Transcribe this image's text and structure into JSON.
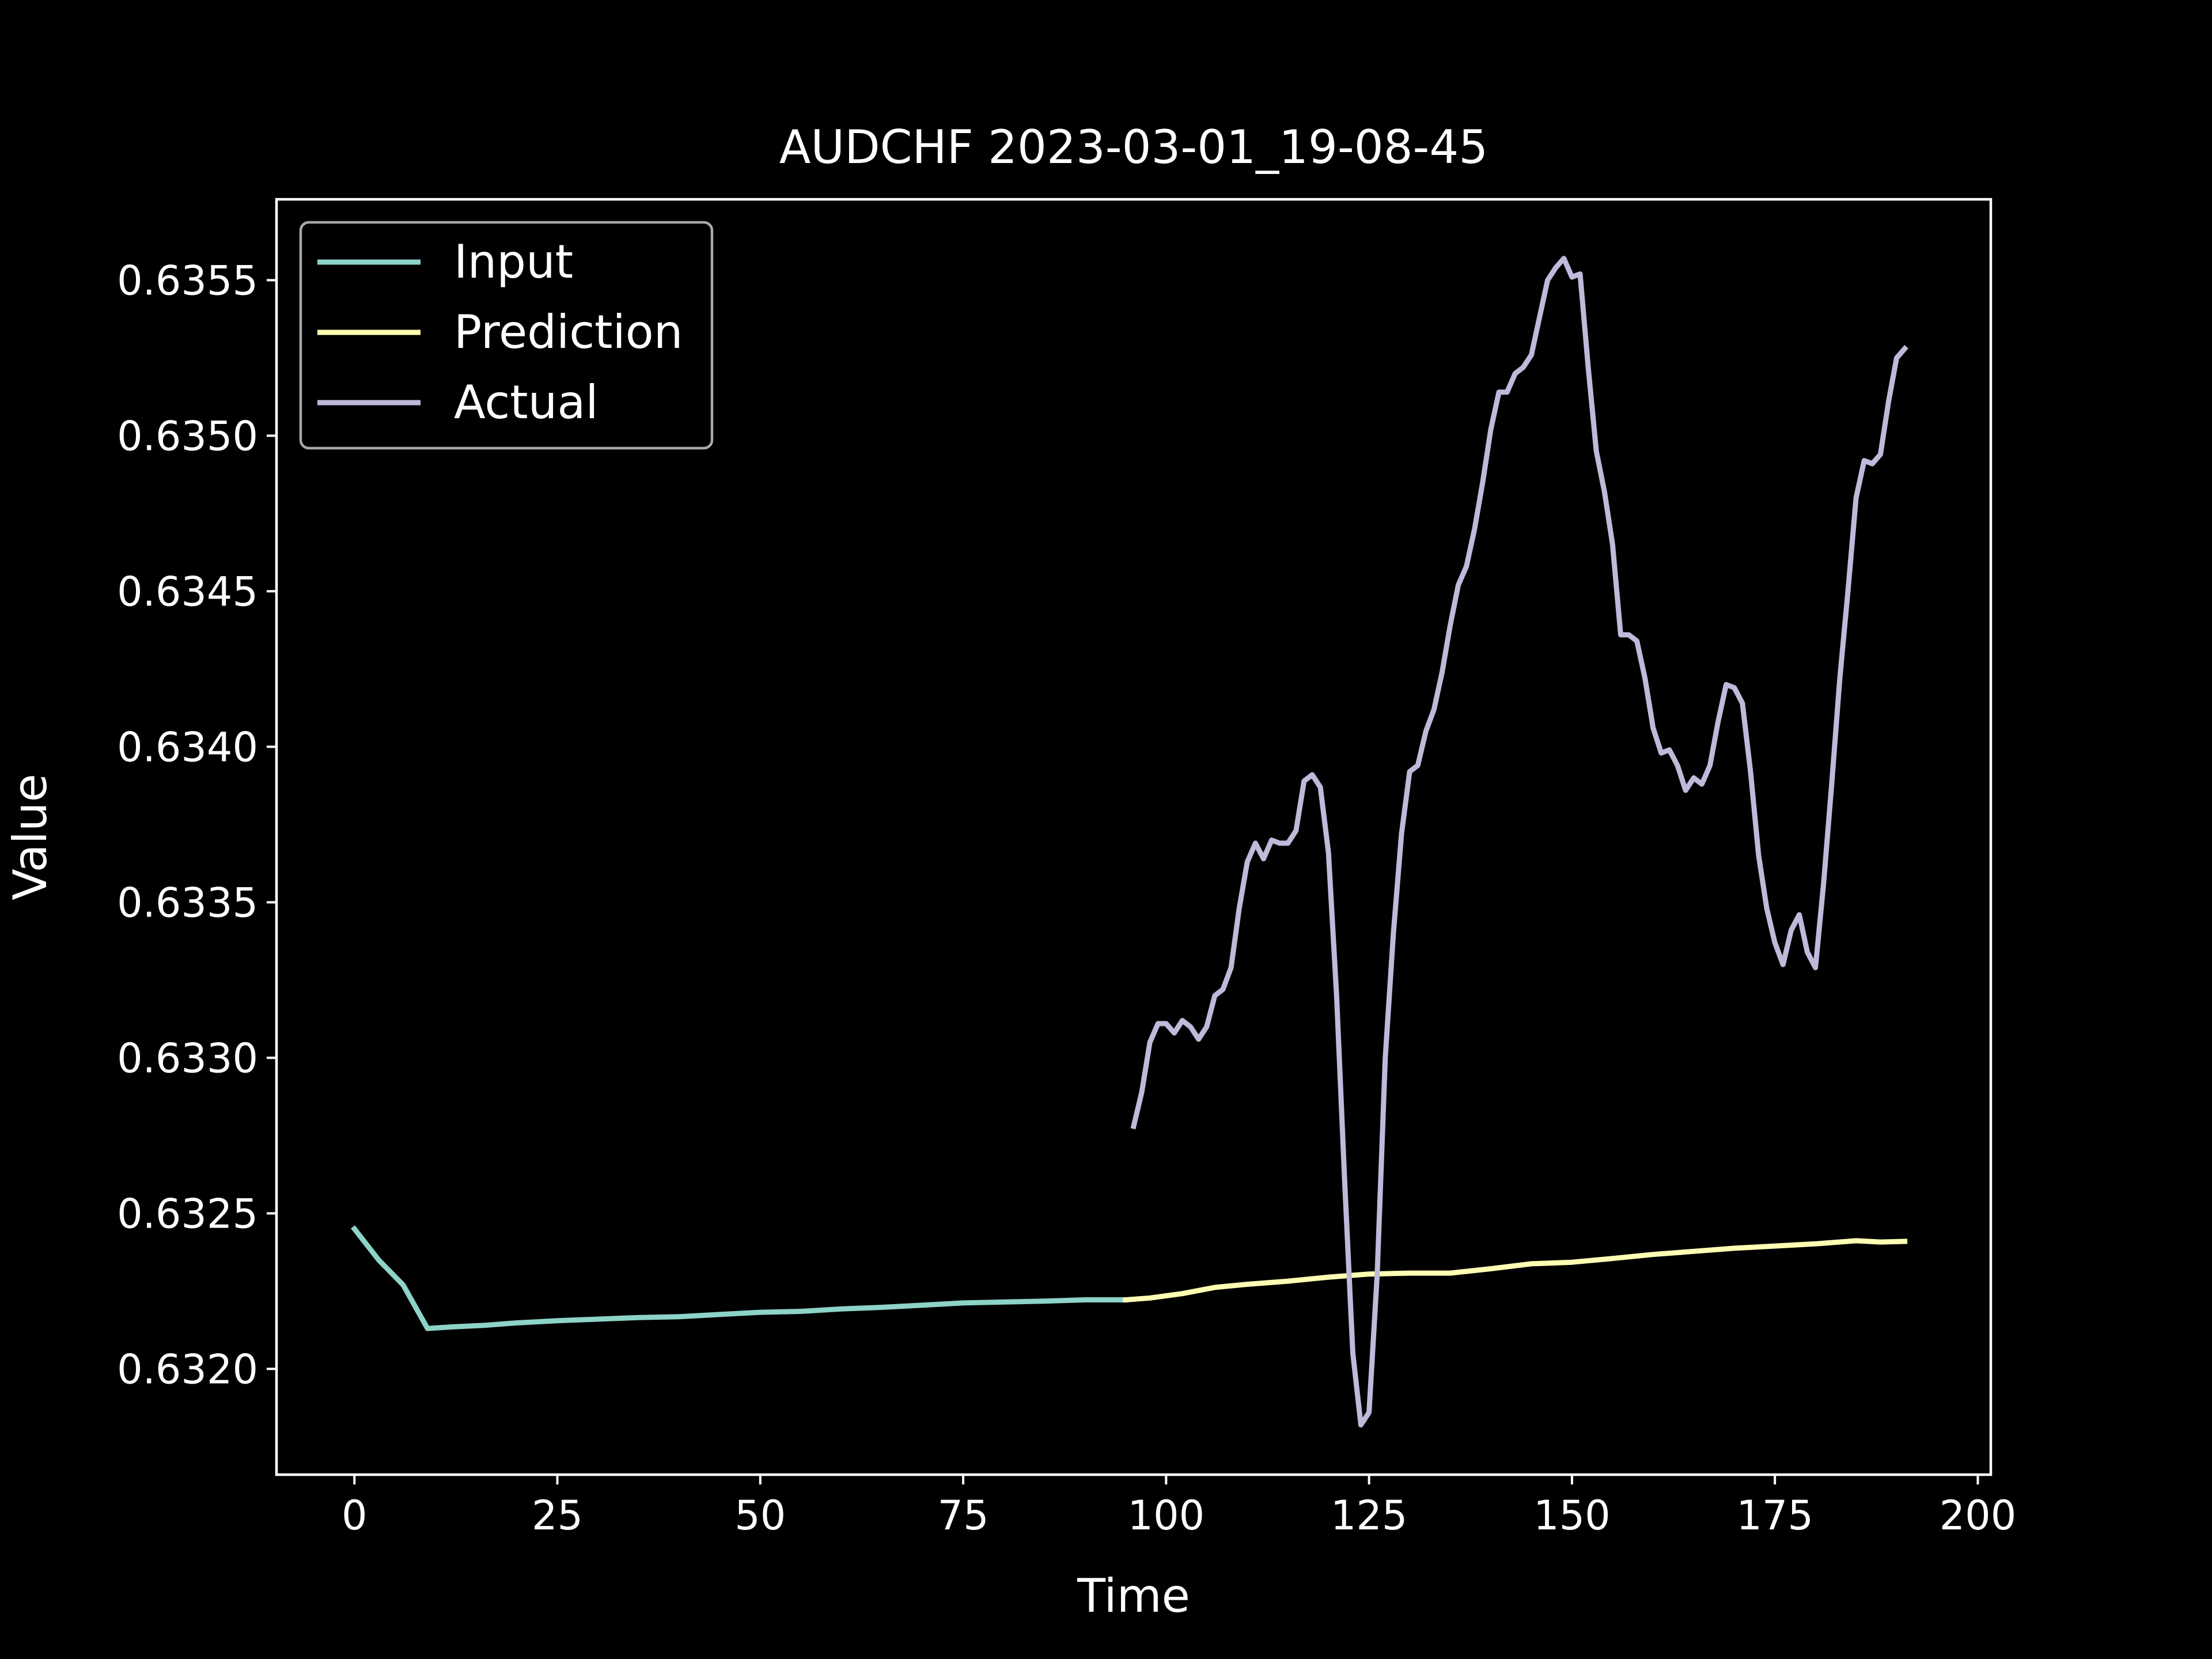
{
  "chart_data": {
    "type": "line",
    "title": "AUDCHF 2023-03-01_19-08-45",
    "xlabel": "Time",
    "ylabel": "Value",
    "xlim": [
      -9.6,
      201.6
    ],
    "ylim": [
      0.63166,
      0.63576
    ],
    "xticks": [
      0,
      25,
      50,
      75,
      100,
      125,
      150,
      175,
      200
    ],
    "xtick_labels": [
      "0",
      "25",
      "50",
      "75",
      "100",
      "125",
      "150",
      "175",
      "200"
    ],
    "yticks": [
      0.632,
      0.6325,
      0.633,
      0.6335,
      0.634,
      0.6345,
      0.635,
      0.6355
    ],
    "ytick_labels": [
      "0.6320",
      "0.6325",
      "0.6330",
      "0.6335",
      "0.6340",
      "0.6345",
      "0.6350",
      "0.6355"
    ],
    "grid": false,
    "legend": "top-left",
    "series": [
      {
        "name": "Input",
        "color": "#8dd3c7",
        "points": [
          [
            0,
            0.63245
          ],
          [
            3,
            0.63235
          ],
          [
            6,
            0.63227
          ],
          [
            9,
            0.63213
          ],
          [
            12,
            0.632135
          ],
          [
            16,
            0.63214
          ],
          [
            20,
            0.632148
          ],
          [
            25,
            0.632155
          ],
          [
            30,
            0.63216
          ],
          [
            35,
            0.632165
          ],
          [
            40,
            0.632168
          ],
          [
            45,
            0.632175
          ],
          [
            50,
            0.632182
          ],
          [
            55,
            0.632185
          ],
          [
            60,
            0.632193
          ],
          [
            65,
            0.632198
          ],
          [
            70,
            0.632205
          ],
          [
            75,
            0.632212
          ],
          [
            80,
            0.632215
          ],
          [
            85,
            0.632218
          ],
          [
            90,
            0.632222
          ],
          [
            95,
            0.632222
          ]
        ]
      },
      {
        "name": "Prediction",
        "color": "#ffffb3",
        "points": [
          [
            95,
            0.632222
          ],
          [
            98,
            0.632228
          ],
          [
            102,
            0.632242
          ],
          [
            106,
            0.632262
          ],
          [
            110,
            0.632272
          ],
          [
            115,
            0.632282
          ],
          [
            120,
            0.632295
          ],
          [
            125,
            0.632305
          ],
          [
            130,
            0.632308
          ],
          [
            135,
            0.632308
          ],
          [
            140,
            0.632322
          ],
          [
            145,
            0.632338
          ],
          [
            150,
            0.632343
          ],
          [
            155,
            0.632355
          ],
          [
            160,
            0.632368
          ],
          [
            165,
            0.632378
          ],
          [
            170,
            0.632388
          ],
          [
            175,
            0.632395
          ],
          [
            180,
            0.632402
          ],
          [
            185,
            0.632412
          ],
          [
            188,
            0.632408
          ],
          [
            191,
            0.63241
          ]
        ]
      },
      {
        "name": "Actual",
        "color": "#bebada",
        "points": [
          [
            96,
            0.63278
          ],
          [
            97,
            0.63289
          ],
          [
            98,
            0.63305
          ],
          [
            99,
            0.63311
          ],
          [
            100,
            0.63311
          ],
          [
            101,
            0.63308
          ],
          [
            102,
            0.63312
          ],
          [
            103,
            0.6331
          ],
          [
            104,
            0.63306
          ],
          [
            105,
            0.6331
          ],
          [
            106,
            0.6332
          ],
          [
            107,
            0.63322
          ],
          [
            108,
            0.63329
          ],
          [
            109,
            0.63348
          ],
          [
            110,
            0.63363
          ],
          [
            111,
            0.63369
          ],
          [
            112,
            0.63364
          ],
          [
            113,
            0.6337
          ],
          [
            114,
            0.63369
          ],
          [
            115,
            0.63369
          ],
          [
            116,
            0.63373
          ],
          [
            117,
            0.63389
          ],
          [
            118,
            0.63391
          ],
          [
            119,
            0.63387
          ],
          [
            120,
            0.63366
          ],
          [
            121,
            0.6332
          ],
          [
            122,
            0.6326
          ],
          [
            123,
            0.63205
          ],
          [
            124,
            0.63182
          ],
          [
            125,
            0.63186
          ],
          [
            126,
            0.6323
          ],
          [
            127,
            0.633
          ],
          [
            128,
            0.6334
          ],
          [
            129,
            0.63372
          ],
          [
            130,
            0.63392
          ],
          [
            131,
            0.63394
          ],
          [
            132,
            0.63405
          ],
          [
            133,
            0.63412
          ],
          [
            134,
            0.63424
          ],
          [
            135,
            0.63439
          ],
          [
            136,
            0.63452
          ],
          [
            137,
            0.63458
          ],
          [
            138,
            0.6347
          ],
          [
            139,
            0.63485
          ],
          [
            140,
            0.63502
          ],
          [
            141,
            0.63514
          ],
          [
            142,
            0.63514
          ],
          [
            143,
            0.6352
          ],
          [
            144,
            0.63522
          ],
          [
            145,
            0.63526
          ],
          [
            146,
            0.63538
          ],
          [
            147,
            0.6355
          ],
          [
            148,
            0.63554
          ],
          [
            149,
            0.63557
          ],
          [
            150,
            0.63551
          ],
          [
            151,
            0.63552
          ],
          [
            152,
            0.63522
          ],
          [
            153,
            0.63495
          ],
          [
            154,
            0.63482
          ],
          [
            155,
            0.63465
          ],
          [
            156,
            0.63436
          ],
          [
            157,
            0.63436
          ],
          [
            158,
            0.63434
          ],
          [
            159,
            0.63422
          ],
          [
            160,
            0.63406
          ],
          [
            161,
            0.63398
          ],
          [
            162,
            0.63399
          ],
          [
            163,
            0.63394
          ],
          [
            164,
            0.63386
          ],
          [
            165,
            0.6339
          ],
          [
            166,
            0.63388
          ],
          [
            167,
            0.63394
          ],
          [
            168,
            0.63408
          ],
          [
            169,
            0.6342
          ],
          [
            170,
            0.63419
          ],
          [
            171,
            0.63414
          ],
          [
            172,
            0.63392
          ],
          [
            173,
            0.63365
          ],
          [
            174,
            0.63348
          ],
          [
            175,
            0.63337
          ],
          [
            176,
            0.6333
          ],
          [
            177,
            0.63341
          ],
          [
            178,
            0.63346
          ],
          [
            179,
            0.63334
          ],
          [
            180,
            0.63329
          ],
          [
            181,
            0.63356
          ],
          [
            182,
            0.63388
          ],
          [
            183,
            0.63422
          ],
          [
            184,
            0.6345
          ],
          [
            185,
            0.6348
          ],
          [
            186,
            0.63492
          ],
          [
            187,
            0.63491
          ],
          [
            188,
            0.63494
          ],
          [
            189,
            0.63511
          ],
          [
            190,
            0.63525
          ],
          [
            191,
            0.63528
          ]
        ]
      }
    ]
  }
}
